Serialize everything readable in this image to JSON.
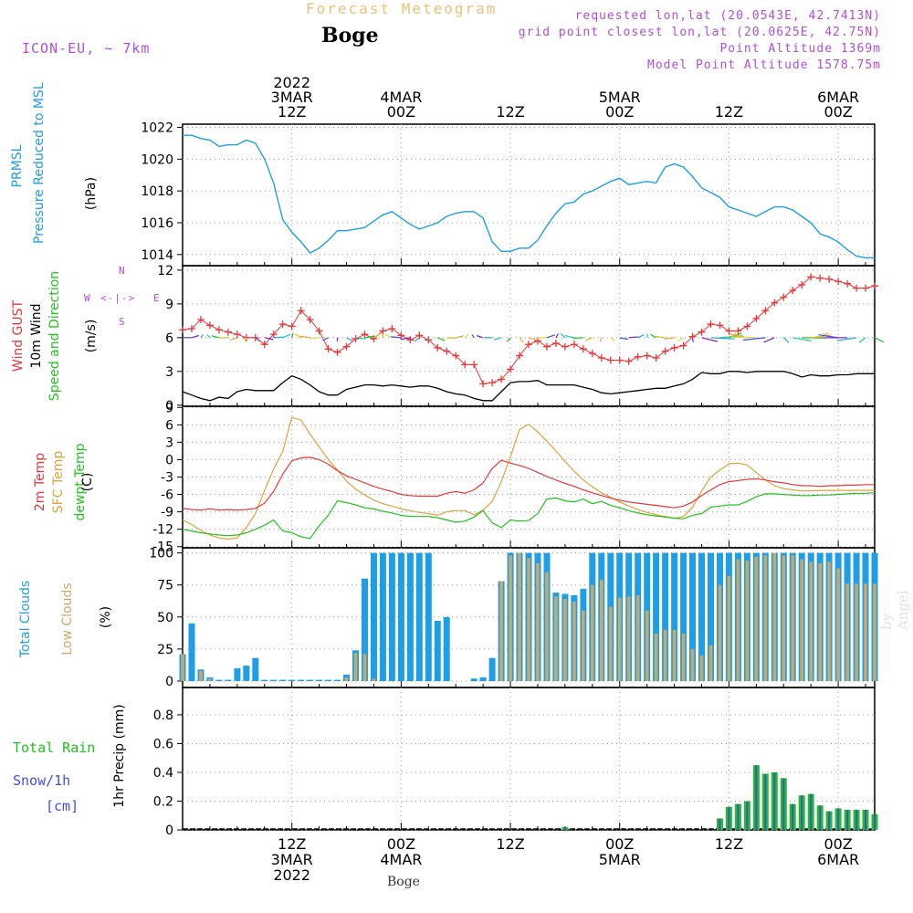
{
  "header": {
    "title": "Forecast Meteogram",
    "station": "Boge",
    "model": "ICON-EU, ~ 7km",
    "requested": "requested lon,lat (20.0543E, 42.7413N)",
    "gridpoint": "grid point closest lon,lat (20.0625E, 42.75N)",
    "point_alt": "Point Altitude 1369m",
    "model_alt": "Model Point Altitude 1578.75m"
  },
  "time_axis": {
    "top_labels": [
      {
        "t": 12,
        "lines": [
          "2022",
          "3MAR",
          "12Z"
        ]
      },
      {
        "t": 24,
        "lines": [
          "4MAR",
          "00Z"
        ]
      },
      {
        "t": 36,
        "lines": [
          "12Z"
        ]
      },
      {
        "t": 48,
        "lines": [
          "5MAR",
          "00Z"
        ]
      },
      {
        "t": 60,
        "lines": [
          "12Z"
        ]
      },
      {
        "t": 72,
        "lines": [
          "6MAR",
          "00Z"
        ]
      }
    ],
    "bottom_labels": [
      {
        "t": 12,
        "lines": [
          "12Z",
          "3MAR",
          "2022"
        ]
      },
      {
        "t": 24,
        "lines": [
          "00Z",
          "4MAR"
        ]
      },
      {
        "t": 36,
        "lines": [
          "12Z"
        ]
      },
      {
        "t": 48,
        "lines": [
          "00Z",
          "5MAR"
        ]
      },
      {
        "t": 60,
        "lines": [
          "12Z"
        ]
      },
      {
        "t": 72,
        "lines": [
          "00Z",
          "6MAR"
        ]
      }
    ],
    "footer": "Boge"
  },
  "labels": {
    "p1": [
      "PRMSL",
      "Pressure Reduced to MSL",
      "(hPa)"
    ],
    "p2": [
      "Wind GUST",
      "10m Wind",
      "Speed and Direction",
      "(m/s)"
    ],
    "p3": [
      "2m Temp",
      "SFC Temp",
      "dewpt Temp",
      "(C)"
    ],
    "p4": [
      "Total Clouds",
      "Low Clouds",
      "(%)"
    ],
    "p5a": "Total  Rain",
    "p5b": "Snow/1h",
    "p5c": "[cm]",
    "p5y": "1hr Precip (mm)",
    "compass": [
      "N",
      "S",
      "W",
      "E",
      "<-|->"
    ],
    "watermark": "by Angel"
  },
  "colors": {
    "pressure": "#1f9ee6",
    "gust": "#e8373a",
    "wind": "#000000",
    "t2m": "#e8373a",
    "sfc": "#dca33c",
    "dew": "#22c21e",
    "total_clouds": "#1f9ee6",
    "low_clouds": "#c9a96a",
    "rain": "#22c21e",
    "snow": "#3f4fe0"
  },
  "chart_data": [
    {
      "type": "line",
      "name": "pressure",
      "title": "PRMSL Pressure Reduced to MSL",
      "ylabel": "(hPa)",
      "ylim": [
        1013.3,
        1022.2
      ],
      "yticks": [
        1014,
        1016,
        1018,
        1020,
        1022
      ],
      "x_start": 0,
      "x_end": 76,
      "x_step": 1,
      "series": [
        {
          "name": "PRMSL",
          "values": [
            1021.5,
            1021.5,
            1021.3,
            1021.2,
            1020.8,
            1020.9,
            1020.9,
            1021.2,
            1021.0,
            1020.0,
            1018.5,
            1016.2,
            1015.4,
            1014.8,
            1014.1,
            1014.4,
            1014.9,
            1015.5,
            1015.5,
            1015.6,
            1015.7,
            1016.1,
            1016.5,
            1016.7,
            1016.3,
            1015.9,
            1015.6,
            1015.8,
            1016.0,
            1016.4,
            1016.6,
            1016.7,
            1016.7,
            1016.3,
            1014.8,
            1014.2,
            1014.2,
            1014.4,
            1014.4,
            1014.9,
            1015.8,
            1016.6,
            1017.2,
            1017.3,
            1017.8,
            1018.0,
            1018.3,
            1018.6,
            1018.8,
            1018.4,
            1018.5,
            1018.6,
            1018.5,
            1019.5,
            1019.7,
            1019.5,
            1018.9,
            1018.2,
            1017.9,
            1017.6,
            1017.0,
            1016.8,
            1016.6,
            1016.4,
            1016.7,
            1017.0,
            1017.0,
            1016.8,
            1016.4,
            1016.0,
            1015.3,
            1015.1,
            1014.8,
            1014.3,
            1013.9,
            1013.8,
            1013.8
          ]
        }
      ]
    },
    {
      "type": "line",
      "name": "wind",
      "title": "Wind GUST / 10m Wind Speed and Direction",
      "ylabel": "(m/s)",
      "ylim": [
        -0.1,
        12.4
      ],
      "yticks": [
        0,
        3,
        6,
        9,
        12
      ],
      "x_start": 0,
      "x_end": 76,
      "x_step": 1,
      "series": [
        {
          "name": "Wind GUST",
          "values": [
            6.7,
            6.8,
            7.6,
            7.1,
            6.7,
            6.5,
            6.3,
            6.0,
            6.0,
            5.4,
            6.3,
            7.2,
            7.0,
            8.4,
            7.6,
            6.6,
            5.0,
            4.7,
            5.2,
            5.9,
            6.3,
            5.9,
            6.6,
            6.8,
            6.2,
            5.8,
            6.2,
            5.8,
            5.1,
            4.8,
            4.4,
            3.6,
            3.6,
            1.9,
            2.0,
            2.3,
            3.2,
            4.4,
            5.4,
            5.7,
            5.2,
            5.5,
            5.2,
            5.4,
            5.0,
            4.6,
            4.2,
            4.0,
            4.0,
            3.9,
            4.3,
            4.4,
            4.2,
            4.8,
            5.1,
            5.3,
            6.1,
            6.5,
            7.2,
            7.1,
            6.6,
            6.6,
            7.0,
            7.7,
            8.4,
            9.1,
            9.6,
            10.2,
            10.7,
            11.4,
            11.3,
            11.2,
            11.0,
            10.8,
            10.4,
            10.4,
            10.6
          ]
        },
        {
          "name": "10m Wind",
          "values": [
            1.2,
            0.9,
            0.6,
            0.4,
            0.7,
            0.6,
            1.2,
            1.4,
            1.3,
            1.3,
            1.3,
            2.0,
            2.6,
            2.3,
            1.8,
            1.2,
            0.9,
            0.9,
            1.4,
            1.6,
            1.8,
            1.8,
            1.7,
            1.8,
            1.7,
            1.6,
            1.7,
            1.7,
            1.5,
            1.2,
            1.0,
            0.9,
            0.6,
            0.4,
            0.4,
            1.2,
            2.0,
            2.1,
            2.1,
            2.2,
            1.8,
            1.8,
            1.8,
            1.8,
            1.6,
            1.4,
            1.1,
            1.0,
            1.1,
            1.2,
            1.3,
            1.4,
            1.5,
            1.5,
            1.7,
            1.9,
            2.3,
            2.9,
            2.8,
            2.8,
            3.0,
            3.0,
            2.9,
            3.0,
            3.0,
            3.0,
            3.0,
            2.8,
            2.5,
            2.7,
            2.6,
            2.6,
            2.7,
            2.7,
            2.8,
            2.8,
            2.8
          ]
        }
      ]
    },
    {
      "type": "line",
      "name": "temperature",
      "title": "2m Temp / SFC Temp / dewpt Temp",
      "ylabel": "(C)",
      "ylim": [
        -15.2,
        9.2
      ],
      "yticks": [
        -15,
        -12,
        -9,
        -6,
        -3,
        0,
        3,
        6,
        9
      ],
      "x_start": 0,
      "x_end": 76,
      "x_step": 1,
      "series": [
        {
          "name": "2m Temp",
          "values": [
            -8.4,
            -8.6,
            -8.7,
            -8.5,
            -8.7,
            -8.6,
            -8.7,
            -8.6,
            -8.4,
            -7.5,
            -5.5,
            -2.5,
            -0.2,
            0.3,
            0.4,
            0.0,
            -0.8,
            -1.9,
            -2.8,
            -3.4,
            -4.0,
            -4.6,
            -5.1,
            -5.5,
            -6.0,
            -6.2,
            -6.3,
            -6.3,
            -6.3,
            -5.8,
            -5.5,
            -5.8,
            -5.2,
            -4.0,
            -1.5,
            -0.1,
            -0.6,
            -1.0,
            -1.5,
            -2.2,
            -2.9,
            -3.5,
            -4.1,
            -4.6,
            -5.2,
            -5.7,
            -6.2,
            -6.6,
            -7.0,
            -7.3,
            -7.5,
            -7.7,
            -7.9,
            -8.1,
            -8.3,
            -8.0,
            -7.3,
            -6.2,
            -5.2,
            -4.3,
            -3.8,
            -3.6,
            -3.4,
            -3.3,
            -3.5,
            -3.8,
            -4.0,
            -4.3,
            -4.5,
            -4.5,
            -4.6,
            -4.5,
            -4.5,
            -4.4,
            -4.4,
            -4.3,
            -4.3
          ]
        },
        {
          "name": "SFC Temp",
          "values": [
            -10.4,
            -11.2,
            -12.2,
            -13.0,
            -13.5,
            -13.7,
            -13.5,
            -11.7,
            -9.3,
            -5.3,
            -1.6,
            1.4,
            7.3,
            6.8,
            4.4,
            2.2,
            0.0,
            -1.8,
            -3.7,
            -5.1,
            -6.1,
            -7.0,
            -7.6,
            -8.0,
            -8.5,
            -8.8,
            -9.1,
            -9.3,
            -9.6,
            -9.0,
            -8.8,
            -8.8,
            -9.5,
            -8.7,
            -7.2,
            -3.8,
            0.5,
            5.2,
            6.1,
            4.8,
            3.2,
            1.5,
            -0.3,
            -2.0,
            -3.5,
            -4.7,
            -5.7,
            -6.5,
            -7.3,
            -8.0,
            -8.6,
            -9.1,
            -9.5,
            -9.8,
            -10.1,
            -9.8,
            -8.2,
            -5.4,
            -3.0,
            -1.8,
            -0.7,
            -0.6,
            -0.9,
            -2.2,
            -3.5,
            -4.5,
            -5.0,
            -5.2,
            -5.4,
            -5.4,
            -5.3,
            -5.3,
            -5.3,
            -5.3,
            -5.3,
            -5.3,
            -5.3
          ]
        },
        {
          "name": "dewpt Temp",
          "values": [
            -12.0,
            -12.3,
            -12.6,
            -12.8,
            -13.0,
            -13.1,
            -13.0,
            -12.6,
            -12.0,
            -11.3,
            -10.4,
            -12.3,
            -12.6,
            -13.3,
            -13.6,
            -11.4,
            -9.6,
            -7.1,
            -7.4,
            -7.8,
            -8.3,
            -8.5,
            -8.9,
            -9.2,
            -9.6,
            -9.8,
            -9.8,
            -9.8,
            -10.0,
            -10.4,
            -10.8,
            -10.6,
            -9.9,
            -8.8,
            -10.9,
            -11.7,
            -10.4,
            -10.6,
            -10.5,
            -9.3,
            -6.8,
            -6.6,
            -7.1,
            -7.3,
            -6.8,
            -7.6,
            -7.2,
            -7.9,
            -8.3,
            -8.8,
            -9.2,
            -9.5,
            -9.7,
            -9.9,
            -10.1,
            -10.2,
            -9.6,
            -9.3,
            -8.2,
            -8.0,
            -7.8,
            -7.8,
            -7.2,
            -6.4,
            -5.9,
            -5.9,
            -6.0,
            -6.1,
            -6.2,
            -6.2,
            -6.1,
            -6.1,
            -6.0,
            -5.9,
            -5.8,
            -5.8,
            -5.7
          ]
        }
      ]
    },
    {
      "type": "bar",
      "name": "clouds",
      "title": "Total Clouds / Low Clouds",
      "ylabel": "(%)",
      "ylim": [
        -5,
        104
      ],
      "yticks": [
        0,
        25,
        50,
        75,
        100
      ],
      "x_start": 0,
      "x_end": 76,
      "x_step": 1,
      "series": [
        {
          "name": "Total Clouds",
          "values": [
            21,
            45,
            9,
            3,
            1,
            1,
            10,
            12,
            18,
            1,
            1,
            1,
            1,
            1,
            1,
            1,
            1,
            1,
            5,
            24,
            80,
            100,
            100,
            100,
            100,
            100,
            100,
            100,
            47,
            50,
            0,
            0,
            2,
            3,
            18,
            78,
            100,
            100,
            100,
            100,
            100,
            69,
            68,
            67,
            72,
            100,
            100,
            100,
            100,
            100,
            100,
            100,
            100,
            100,
            100,
            100,
            100,
            100,
            100,
            100,
            100,
            100,
            100,
            100,
            100,
            100,
            100,
            100,
            100,
            100,
            100,
            100,
            100,
            100,
            100,
            100,
            100
          ]
        },
        {
          "name": "Low Clouds",
          "values": [
            21,
            0,
            8,
            2,
            0,
            0,
            0,
            0,
            0,
            0,
            0,
            0,
            0,
            0,
            0,
            0,
            0,
            0,
            3,
            22,
            21,
            2,
            0,
            0,
            0,
            0,
            0,
            0,
            0,
            0,
            0,
            0,
            0,
            0,
            0,
            78,
            98,
            100,
            96,
            92,
            85,
            66,
            64,
            62,
            55,
            75,
            79,
            58,
            65,
            66,
            67,
            55,
            37,
            40,
            40,
            37,
            25,
            20,
            28,
            75,
            82,
            95,
            94,
            97,
            98,
            100,
            98,
            98,
            95,
            93,
            92,
            93,
            88,
            76,
            76,
            76,
            76
          ]
        }
      ]
    },
    {
      "type": "bar",
      "name": "precip",
      "title": "Total Rain / Snow/1h",
      "ylabel": "1hr Precip (mm)",
      "ylim": [
        0,
        0.99
      ],
      "yticks": [
        0,
        0.2,
        0.4,
        0.6,
        0.8
      ],
      "x_start": 0,
      "x_end": 76,
      "x_step": 1,
      "series": [
        {
          "name": "Total Rain",
          "values": [
            0,
            0,
            0,
            0,
            0,
            0,
            0,
            0,
            0,
            0,
            0,
            0,
            0,
            0,
            0,
            0,
            0,
            0,
            0,
            0,
            0,
            0,
            0,
            0,
            0,
            0,
            0,
            0,
            0,
            0,
            0,
            0,
            0,
            0,
            0,
            0,
            0,
            0,
            0,
            0,
            0,
            0,
            0.02,
            0,
            0,
            0,
            0,
            0,
            0,
            0,
            0,
            0,
            0,
            0,
            0,
            0,
            0,
            0,
            0,
            0.08,
            0.16,
            0.18,
            0.2,
            0.45,
            0.39,
            0.4,
            0.36,
            0.18,
            0.24,
            0.25,
            0.17,
            0.13,
            0.15,
            0.14,
            0.14,
            0.14,
            0.11
          ]
        }
      ]
    }
  ]
}
